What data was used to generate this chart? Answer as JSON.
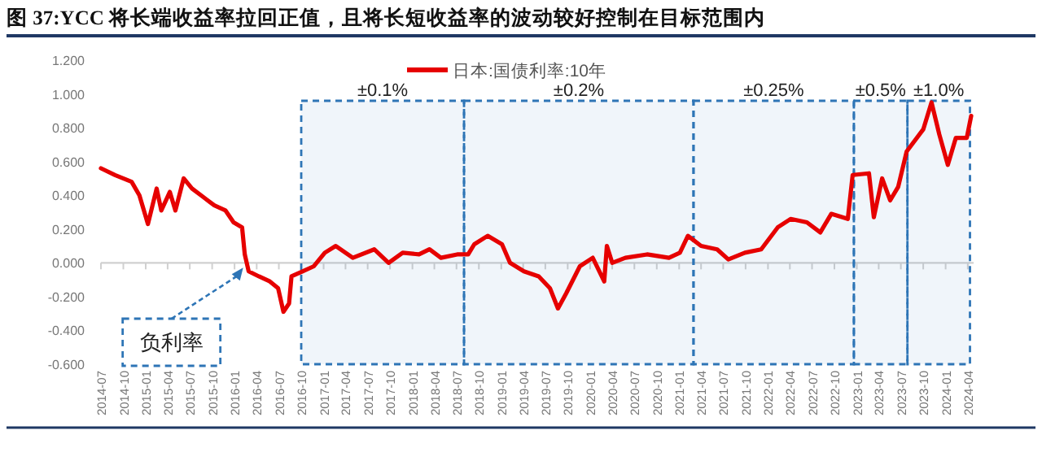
{
  "chart_data": {
    "type": "line",
    "title": "图 37:YCC 将长端收益率拉回正值，且将长短收益率的波动较好控制在目标范围内",
    "legend": "top",
    "series": [
      {
        "name": "日本:国债利率:10年",
        "color": "#e60000",
        "x": [
          "2014-07-01",
          "2014-08-28",
          "2014-11-04",
          "2014-12-06",
          "2015-01-10",
          "2015-02-15",
          "2015-03-06",
          "2015-04-10",
          "2015-05-03",
          "2015-06-06",
          "2015-07-10",
          "2015-08-25",
          "2015-10-10",
          "2015-11-25",
          "2015-12-28",
          "2016-02-01",
          "2016-02-12",
          "2016-02-28",
          "2016-04-10",
          "2016-05-25",
          "2016-06-28",
          "2016-07-20",
          "2016-08-12",
          "2016-08-22",
          "2016-10-08",
          "2016-11-22",
          "2017-01-06",
          "2017-02-20",
          "2017-05-01",
          "2017-07-28",
          "2017-09-25",
          "2017-11-22",
          "2018-01-28",
          "2018-03-12",
          "2018-04-28",
          "2018-07-04",
          "2018-08-18",
          "2018-09-12",
          "2018-11-06",
          "2019-01-04",
          "2019-02-06",
          "2019-04-04",
          "2019-06-04",
          "2019-07-20",
          "2019-08-22",
          "2019-09-25",
          "2019-11-20",
          "2020-01-12",
          "2020-02-28",
          "2020-03-10",
          "2020-04-01",
          "2020-05-25",
          "2020-08-22",
          "2020-11-20",
          "2021-01-04",
          "2021-02-06",
          "2021-04-01",
          "2021-06-06",
          "2021-07-22",
          "2021-09-28",
          "2021-12-04",
          "2022-02-10",
          "2022-04-04",
          "2022-06-10",
          "2022-08-04",
          "2022-09-18",
          "2022-11-25",
          "2022-12-15",
          "2023-02-20",
          "2023-03-12",
          "2023-04-15",
          "2023-05-18",
          "2023-06-20",
          "2023-07-25",
          "2023-10-01",
          "2023-11-04",
          "2023-12-06",
          "2024-01-10",
          "2024-02-12",
          "2024-03-28",
          "2024-04-15"
        ],
        "values": [
          0.56,
          0.52,
          0.48,
          0.4,
          0.23,
          0.44,
          0.31,
          0.42,
          0.31,
          0.5,
          0.44,
          0.39,
          0.34,
          0.31,
          0.24,
          0.21,
          0.05,
          -0.05,
          -0.08,
          -0.11,
          -0.15,
          -0.29,
          -0.24,
          -0.08,
          -0.05,
          -0.02,
          0.06,
          0.1,
          0.03,
          0.08,
          0.0,
          0.06,
          0.05,
          0.08,
          0.03,
          0.05,
          0.05,
          0.11,
          0.16,
          0.11,
          0.0,
          -0.05,
          -0.08,
          -0.15,
          -0.27,
          -0.18,
          -0.02,
          0.03,
          -0.11,
          0.1,
          0.0,
          0.03,
          0.05,
          0.03,
          0.06,
          0.16,
          0.1,
          0.08,
          0.02,
          0.06,
          0.08,
          0.21,
          0.26,
          0.24,
          0.18,
          0.29,
          0.26,
          0.52,
          0.53,
          0.27,
          0.5,
          0.37,
          0.45,
          0.66,
          0.79,
          0.95,
          0.76,
          0.58,
          0.74,
          0.74,
          0.87
        ]
      }
    ],
    "xlim": [
      "2014-07-01",
      "2024-04-25"
    ],
    "xticks": [
      "2014-07",
      "2014-10",
      "2015-01",
      "2015-04",
      "2015-07",
      "2015-10",
      "2016-01",
      "2016-04",
      "2016-07",
      "2016-10",
      "2017-01",
      "2017-04",
      "2017-07",
      "2017-10",
      "2018-01",
      "2018-04",
      "2018-07",
      "2018-10",
      "2019-01",
      "2019-04",
      "2019-07",
      "2019-10",
      "2020-01",
      "2020-04",
      "2020-07",
      "2020-10",
      "2021-01",
      "2021-04",
      "2021-07",
      "2021-10",
      "2022-01",
      "2022-04",
      "2022-07",
      "2022-10",
      "2023-01",
      "2023-04",
      "2023-07",
      "2023-10",
      "2024-01",
      "2024-04"
    ],
    "ylim": [
      -0.6,
      1.2
    ],
    "yticks": [
      {
        "value": 1.2,
        "label": "1.200"
      },
      {
        "value": 1.0,
        "label": "1.000"
      },
      {
        "value": 0.8,
        "label": "0.800"
      },
      {
        "value": 0.6,
        "label": "0.600"
      },
      {
        "value": 0.4,
        "label": "0.400"
      },
      {
        "value": 0.2,
        "label": "0.200"
      },
      {
        "value": 0,
        "label": "0.000"
      },
      {
        "value": -0.2,
        "label": "-0.200"
      },
      {
        "value": -0.4,
        "label": "-0.400"
      },
      {
        "value": -0.6,
        "label": "-0.600"
      }
    ],
    "bands": [
      {
        "axis": "x",
        "from": "2016-10-01",
        "to": "2018-08-01",
        "label": "±0.1%",
        "color": "#2e75b6"
      },
      {
        "axis": "x",
        "from": "2018-08-01",
        "to": "2021-03-01",
        "label": "±0.2%",
        "color": "#2e75b6"
      },
      {
        "axis": "x",
        "from": "2021-03-01",
        "to": "2022-12-20",
        "label": "±0.25%",
        "color": "#2e75b6"
      },
      {
        "axis": "x",
        "from": "2022-12-20",
        "to": "2023-07-28",
        "label": "±0.5%",
        "color": "#2e75b6"
      },
      {
        "axis": "x",
        "from": "2023-07-28",
        "to": "2024-04-10",
        "label": "±1.0%",
        "color": "#2e75b6"
      }
    ],
    "annotations": [
      {
        "text": "负利率",
        "x": "2016-02-12",
        "y": 0
      }
    ]
  }
}
